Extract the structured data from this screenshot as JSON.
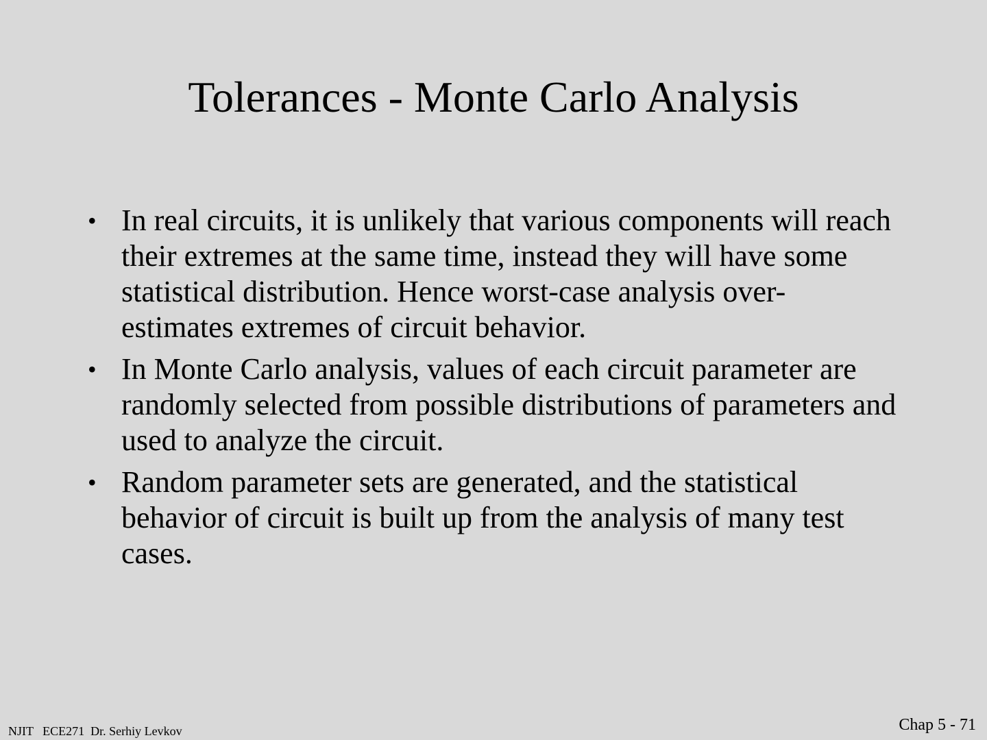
{
  "slide": {
    "title": "Tolerances - Monte Carlo Analysis",
    "bullets": [
      "In real circuits, it is unlikely that various components will reach their extremes at the same time, instead they will have some statistical distribution. Hence worst-case analysis over-estimates extremes of circuit behavior.",
      "In Monte Carlo analysis, values of each circuit parameter are randomly selected from possible distributions of parameters and used to analyze the circuit.",
      "Random parameter sets are generated, and the statistical behavior of circuit is built up from the analysis of many test cases."
    ],
    "bullet_glyph": "•"
  },
  "footer": {
    "left": "NJIT   ECE271  Dr. Serhiy Levkov",
    "right": "Chap 5 - 71"
  }
}
